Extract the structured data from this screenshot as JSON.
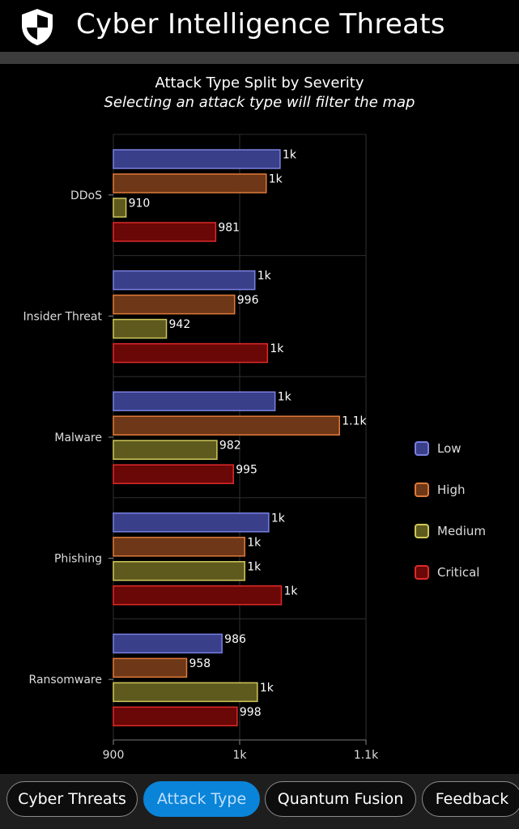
{
  "header": {
    "title": "Cyber Intelligence Threats",
    "logo_icon": "shield-icon"
  },
  "chart_data": {
    "type": "bar",
    "orientation": "horizontal",
    "title": "Attack Type Split by Severity",
    "subtitle": "Selecting an attack type will filter the map",
    "categories": [
      "DDoS",
      "Insider Threat",
      "Malware",
      "Phishing",
      "Ransomware"
    ],
    "series": [
      {
        "name": "Low",
        "color": "#3a3f8a",
        "border": "#7a80e0",
        "values": [
          1032,
          1012,
          1028,
          1023,
          986
        ],
        "labels": [
          "1k",
          "1k",
          "1k",
          "1k",
          "986"
        ]
      },
      {
        "name": "High",
        "color": "#6e3717",
        "border": "#e07a3a",
        "values": [
          1021,
          996,
          1079,
          1004,
          958
        ],
        "labels": [
          "1k",
          "996",
          "1.1k",
          "1k",
          "958"
        ]
      },
      {
        "name": "Medium",
        "color": "#5e5a1e",
        "border": "#d0c85a",
        "values": [
          910,
          942,
          982,
          1004,
          1014
        ],
        "labels": [
          "910",
          "942",
          "982",
          "1k",
          "1k"
        ]
      },
      {
        "name": "Critical",
        "color": "#6a0707",
        "border": "#e02a2a",
        "values": [
          981,
          1022,
          995,
          1033,
          998
        ],
        "labels": [
          "981",
          "1k",
          "995",
          "1k",
          "998"
        ]
      }
    ],
    "xlim": [
      900,
      1100
    ],
    "xticks": [
      900,
      1000,
      1100
    ],
    "xtick_labels": [
      "900",
      "1k",
      "1.1k"
    ],
    "grid": true,
    "legend_position": "right"
  },
  "tabs": [
    {
      "label": "Cyber Threats",
      "active": false
    },
    {
      "label": "Attack Type",
      "active": true
    },
    {
      "label": "Quantum Fusion",
      "active": false
    },
    {
      "label": "Feedback",
      "active": false
    }
  ]
}
